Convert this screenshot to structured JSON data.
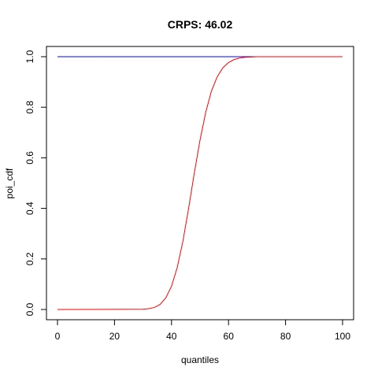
{
  "chart_data": {
    "type": "line",
    "title": "CRPS: 46.02",
    "xlabel": "quantiles",
    "ylabel": "poi_cdf",
    "xlim": [
      0,
      100
    ],
    "ylim": [
      0,
      1
    ],
    "x_ticks": [
      0,
      20,
      40,
      60,
      80,
      100
    ],
    "y_ticks": [
      0.0,
      0.2,
      0.4,
      0.6,
      0.8,
      1.0
    ],
    "x_tick_labels": [
      "0",
      "20",
      "40",
      "60",
      "80",
      "100"
    ],
    "y_tick_labels": [
      "0.0",
      "0.2",
      "0.4",
      "0.6",
      "0.8",
      "1.0"
    ],
    "grid": false,
    "series": [
      {
        "color": "#0000ff",
        "x": [
          0,
          100
        ],
        "y": [
          1.0,
          1.0
        ]
      },
      {
        "color": "#ff0000",
        "x": [
          0,
          30,
          32,
          34,
          36,
          38,
          40,
          42,
          44,
          46,
          48,
          50,
          52,
          54,
          56,
          58,
          60,
          62,
          64,
          66,
          68,
          70,
          72,
          75,
          80,
          100
        ],
        "y": [
          0.0,
          0.001,
          0.003,
          0.008,
          0.02,
          0.046,
          0.092,
          0.166,
          0.27,
          0.4,
          0.54,
          0.67,
          0.78,
          0.864,
          0.92,
          0.956,
          0.977,
          0.989,
          0.995,
          0.998,
          0.999,
          1.0,
          1.0,
          1.0,
          1.0,
          1.0
        ]
      }
    ]
  }
}
